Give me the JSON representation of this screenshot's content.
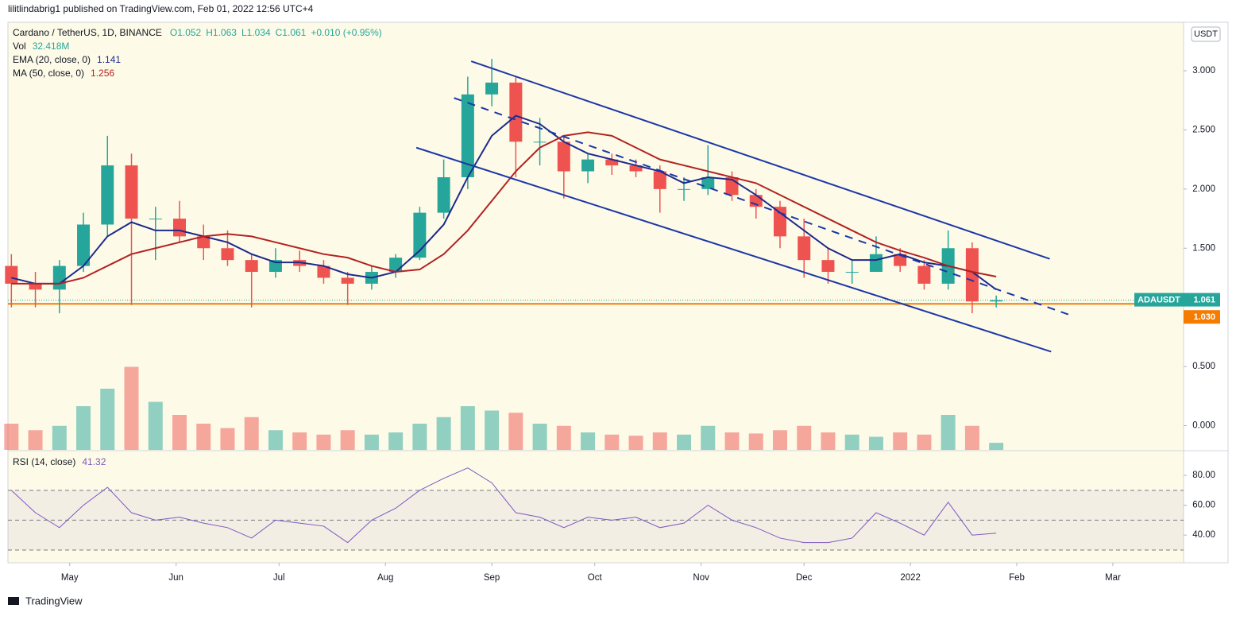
{
  "header": {
    "published": "lilitlindabrig1 published on TradingView.com, Feb 01, 2022 12:56 UTC+4"
  },
  "footer": {
    "brand": "TradingView"
  },
  "chart_data": {
    "type": "candlestick",
    "title": "Cardano / TetherUS, 1D, BINANCE",
    "ohlc_legend": [
      "O1.052",
      "H1.063",
      "L1.034",
      "C1.061"
    ],
    "change": "+0.010 (+0.95%)",
    "currency": "USDT",
    "up_color": "#26a69a",
    "down_color": "#ef5350",
    "x": [
      -17,
      -10,
      -3,
      4,
      11,
      18,
      25,
      32,
      39,
      46,
      53,
      60,
      67,
      74,
      81,
      88,
      95,
      102,
      109,
      116,
      123,
      130,
      137,
      144,
      151,
      158,
      165,
      172,
      179,
      186,
      193,
      200,
      207,
      214,
      221,
      228,
      235,
      242,
      249,
      256,
      263,
      270
    ],
    "open": [
      1.35,
      1.2,
      1.15,
      1.35,
      1.7,
      2.2,
      1.75,
      1.75,
      1.6,
      1.5,
      1.4,
      1.3,
      1.4,
      1.35,
      1.25,
      1.2,
      1.3,
      1.42,
      1.8,
      2.1,
      2.8,
      2.9,
      2.4,
      2.4,
      2.15,
      2.25,
      2.2,
      2.15,
      2.0,
      2.0,
      2.1,
      1.95,
      1.85,
      1.6,
      1.4,
      1.3,
      1.3,
      1.45,
      1.35,
      1.2,
      1.5,
      1.05
    ],
    "high": [
      1.45,
      1.3,
      1.4,
      1.8,
      2.45,
      2.3,
      1.85,
      1.9,
      1.7,
      1.65,
      1.45,
      1.5,
      1.48,
      1.4,
      1.3,
      1.35,
      1.45,
      1.85,
      2.25,
      2.95,
      3.1,
      2.95,
      2.6,
      2.45,
      2.3,
      2.3,
      2.25,
      2.2,
      2.1,
      2.37,
      2.15,
      2.0,
      1.9,
      1.75,
      1.5,
      1.4,
      1.6,
      1.5,
      1.4,
      1.65,
      1.55,
      1.1
    ],
    "low": [
      1.0,
      1.0,
      0.95,
      1.3,
      1.6,
      1.02,
      1.4,
      1.55,
      1.4,
      1.35,
      1.0,
      1.25,
      1.3,
      1.2,
      1.02,
      1.15,
      1.25,
      1.4,
      1.75,
      2.0,
      2.7,
      2.1,
      2.2,
      1.92,
      2.05,
      2.12,
      2.1,
      1.8,
      1.9,
      1.95,
      1.9,
      1.75,
      1.5,
      1.25,
      1.2,
      1.2,
      1.3,
      1.3,
      1.15,
      1.15,
      0.95,
      1.0
    ],
    "close": [
      1.2,
      1.15,
      1.35,
      1.7,
      2.2,
      1.75,
      1.75,
      1.6,
      1.5,
      1.4,
      1.3,
      1.4,
      1.35,
      1.25,
      1.2,
      1.3,
      1.42,
      1.8,
      2.1,
      2.8,
      2.9,
      2.4,
      2.4,
      2.15,
      2.25,
      2.2,
      2.15,
      2.0,
      2.0,
      2.1,
      1.95,
      1.85,
      1.6,
      1.4,
      1.3,
      1.3,
      1.45,
      1.35,
      1.2,
      1.5,
      1.05,
      1.061
    ],
    "xlim": [
      -18,
      324.6
    ],
    "xticks": [
      {
        "value": 0,
        "label": "May"
      },
      {
        "value": 31,
        "label": "Jun"
      },
      {
        "value": 61,
        "label": "Jul"
      },
      {
        "value": 92,
        "label": "Aug"
      },
      {
        "value": 123,
        "label": "Sep"
      },
      {
        "value": 153,
        "label": "Oct"
      },
      {
        "value": 184,
        "label": "Nov"
      },
      {
        "value": 214,
        "label": "Dec"
      },
      {
        "value": 245,
        "label": "2022"
      },
      {
        "value": 276,
        "label": "Feb"
      },
      {
        "value": 304,
        "label": "Mar"
      }
    ],
    "ylim": [
      -0.205,
      3.41
    ],
    "yticks": [
      {
        "value": 0,
        "label": "0.000"
      },
      {
        "value": 0.5,
        "label": "0.500"
      },
      {
        "value": 1.5,
        "label": "1.500"
      },
      {
        "value": 2,
        "label": "2.000"
      },
      {
        "value": 2.5,
        "label": "2.500"
      },
      {
        "value": 3,
        "label": "3.000"
      }
    ],
    "series": [
      {
        "name": "EMA (20, close, 0)",
        "last": "1.141",
        "color": "#1e2a8c",
        "values": [
          1.25,
          1.2,
          1.2,
          1.35,
          1.6,
          1.72,
          1.65,
          1.65,
          1.6,
          1.55,
          1.45,
          1.38,
          1.38,
          1.35,
          1.28,
          1.25,
          1.3,
          1.48,
          1.7,
          2.1,
          2.45,
          2.62,
          2.55,
          2.4,
          2.3,
          2.25,
          2.2,
          2.15,
          2.05,
          2.1,
          2.08,
          1.95,
          1.8,
          1.65,
          1.5,
          1.4,
          1.4,
          1.45,
          1.38,
          1.35,
          1.3,
          1.15
        ]
      },
      {
        "name": "MA (50, close, 0)",
        "last": "1.256",
        "color": "#b22222",
        "values": [
          1.2,
          1.2,
          1.2,
          1.25,
          1.35,
          1.45,
          1.5,
          1.55,
          1.6,
          1.62,
          1.6,
          1.55,
          1.5,
          1.45,
          1.42,
          1.35,
          1.3,
          1.32,
          1.45,
          1.65,
          1.9,
          2.15,
          2.35,
          2.45,
          2.48,
          2.45,
          2.35,
          2.25,
          2.2,
          2.15,
          2.1,
          2.05,
          1.95,
          1.85,
          1.75,
          1.65,
          1.55,
          1.48,
          1.42,
          1.35,
          1.3,
          1.26
        ]
      }
    ],
    "trendlines": [
      {
        "color": "#1d37a6",
        "dashed": false,
        "points": [
          [
            117,
            3.08
          ],
          [
            285.6,
            1.41
          ]
        ]
      },
      {
        "color": "#1d37a6",
        "dashed": false,
        "points": [
          [
            101,
            2.35
          ],
          [
            286,
            0.625
          ]
        ]
      },
      {
        "color": "#1d37a6",
        "dashed": true,
        "points": [
          [
            112,
            2.77
          ],
          [
            291,
            0.94
          ]
        ]
      }
    ],
    "symbol_tag": "ADAUSDT",
    "last_price": {
      "value": 1.061,
      "label": "1.061"
    },
    "hline": {
      "value": 1.03,
      "label": "1.030",
      "color": "#f57c00"
    },
    "volume": {
      "name": "Vol",
      "last": "32.418M",
      "ylim": [
        0,
        600
      ],
      "values": [
        120,
        90,
        110,
        200,
        280,
        380,
        220,
        160,
        120,
        100,
        150,
        90,
        80,
        70,
        90,
        70,
        80,
        120,
        150,
        200,
        180,
        170,
        120,
        110,
        80,
        70,
        65,
        80,
        70,
        110,
        80,
        75,
        90,
        110,
        80,
        70,
        60,
        80,
        70,
        160,
        110,
        32.418
      ]
    },
    "rsi": {
      "name": "RSI (14, close)",
      "last": "41.32",
      "color": "#7e57c2",
      "values": [
        70,
        55,
        45,
        60,
        72,
        55,
        50,
        52,
        48,
        45,
        38,
        50,
        48,
        46,
        35,
        50,
        58,
        70,
        78,
        85,
        75,
        55,
        52,
        45,
        52,
        50,
        52,
        45,
        48,
        60,
        50,
        45,
        38,
        35,
        35,
        38,
        55,
        48,
        40,
        62,
        40,
        41.32
      ],
      "ylim": [
        22,
        96
      ],
      "bands": [
        30,
        50,
        70
      ],
      "yticks": [
        {
          "value": 40,
          "label": "40.00"
        },
        {
          "value": 60,
          "label": "60.00"
        },
        {
          "value": 80,
          "label": "80.00"
        }
      ]
    }
  }
}
